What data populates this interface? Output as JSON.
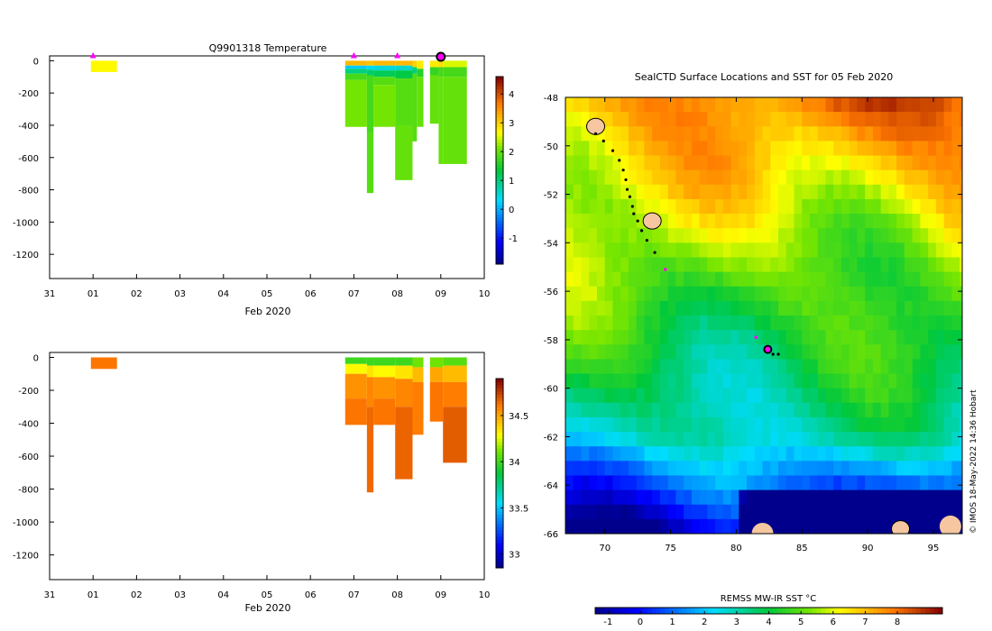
{
  "chart_data": [
    {
      "id": "temperature",
      "type": "heatmap",
      "title": "Q9901318  Temperature",
      "xlabel": "Feb 2020",
      "ylabel": "",
      "x_tick_labels": [
        "31",
        "01",
        "02",
        "03",
        "04",
        "05",
        "06",
        "07",
        "08",
        "09",
        "10"
      ],
      "y_ticks": [
        0,
        -200,
        -400,
        -600,
        -800,
        -1000,
        -1200
      ],
      "ylim": [
        -1350,
        30
      ],
      "colorbar": {
        "min": -1.9,
        "max": 4.6,
        "ticks": [
          -1,
          0,
          1,
          2,
          3,
          4
        ]
      },
      "markers_day": [
        1.0,
        7.0,
        8.0
      ],
      "current_day": 9.0,
      "profiles": [
        {
          "x0": 0.95,
          "x1": 1.55,
          "bottom": -70,
          "layers": [
            [
              0,
              2.7
            ]
          ]
        },
        {
          "x0": 6.8,
          "x1": 7.3,
          "bottom": -410,
          "layers": [
            [
              0,
              3.2
            ],
            [
              -30,
              0.2
            ],
            [
              -50,
              1.0
            ],
            [
              -80,
              1.8
            ],
            [
              -120,
              2.1
            ]
          ]
        },
        {
          "x0": 7.3,
          "x1": 7.45,
          "bottom": -820,
          "layers": [
            [
              0,
              3.1
            ],
            [
              -30,
              0.3
            ],
            [
              -55,
              1.1
            ],
            [
              -90,
              1.8
            ],
            [
              -450,
              1.9
            ]
          ]
        },
        {
          "x0": 7.45,
          "x1": 7.95,
          "bottom": -410,
          "layers": [
            [
              0,
              3.2
            ],
            [
              -30,
              0.5
            ],
            [
              -60,
              1.2
            ],
            [
              -100,
              1.9
            ],
            [
              -150,
              2.1
            ]
          ]
        },
        {
          "x0": 7.95,
          "x1": 8.35,
          "bottom": -740,
          "layers": [
            [
              0,
              3.2
            ],
            [
              -30,
              0.6
            ],
            [
              -60,
              1.3
            ],
            [
              -110,
              1.9
            ],
            [
              -400,
              2.0
            ]
          ]
        },
        {
          "x0": 8.35,
          "x1": 8.45,
          "bottom": -500,
          "layers": [
            [
              0,
              3.0
            ],
            [
              -40,
              1.0
            ],
            [
              -80,
              1.9
            ]
          ]
        },
        {
          "x0": 8.45,
          "x1": 8.6,
          "bottom": -410,
          "layers": [
            [
              0,
              2.8
            ],
            [
              -50,
              1.6
            ],
            [
              -100,
              2.0
            ]
          ]
        },
        {
          "x0": 8.75,
          "x1": 8.95,
          "bottom": -390,
          "layers": [
            [
              0,
              2.8
            ],
            [
              -40,
              1.7
            ],
            [
              -90,
              2.0
            ]
          ]
        },
        {
          "x0": 8.95,
          "x1": 9.05,
          "bottom": -640,
          "layers": [
            [
              0,
              2.9
            ],
            [
              -40,
              1.8
            ],
            [
              -100,
              2.0
            ]
          ]
        },
        {
          "x0": 9.05,
          "x1": 9.6,
          "bottom": -640,
          "layers": [
            [
              0,
              2.5
            ],
            [
              -40,
              1.8
            ],
            [
              -100,
              2.0
            ]
          ]
        }
      ]
    },
    {
      "id": "salinity",
      "type": "heatmap",
      "title": "",
      "xlabel": "Feb 2020",
      "ylabel": "",
      "x_tick_labels": [
        "31",
        "01",
        "02",
        "03",
        "04",
        "05",
        "06",
        "07",
        "08",
        "09",
        "10"
      ],
      "y_ticks": [
        0,
        -200,
        -400,
        -600,
        -800,
        -1000,
        -1200
      ],
      "ylim": [
        -1350,
        30
      ],
      "colorbar": {
        "min": 32.85,
        "max": 34.9,
        "ticks": [
          33,
          33.5,
          34,
          34.5
        ]
      },
      "profiles": [
        {
          "x0": 0.95,
          "x1": 1.55,
          "bottom": -70,
          "layers": [
            [
              0,
              34.62
            ]
          ]
        },
        {
          "x0": 6.8,
          "x1": 7.3,
          "bottom": -410,
          "layers": [
            [
              0,
              34.0
            ],
            [
              -40,
              34.3
            ],
            [
              -100,
              34.55
            ],
            [
              -250,
              34.62
            ]
          ]
        },
        {
          "x0": 7.3,
          "x1": 7.45,
          "bottom": -820,
          "layers": [
            [
              0,
              34.0
            ],
            [
              -50,
              34.35
            ],
            [
              -120,
              34.58
            ],
            [
              -300,
              34.65
            ]
          ]
        },
        {
          "x0": 7.45,
          "x1": 7.95,
          "bottom": -410,
          "layers": [
            [
              0,
              34.0
            ],
            [
              -50,
              34.3
            ],
            [
              -120,
              34.55
            ],
            [
              -250,
              34.62
            ]
          ]
        },
        {
          "x0": 7.95,
          "x1": 8.35,
          "bottom": -740,
          "layers": [
            [
              0,
              34.0
            ],
            [
              -50,
              34.35
            ],
            [
              -130,
              34.58
            ],
            [
              -300,
              34.66
            ]
          ]
        },
        {
          "x0": 8.35,
          "x1": 8.6,
          "bottom": -470,
          "layers": [
            [
              0,
              34.1
            ],
            [
              -60,
              34.45
            ],
            [
              -150,
              34.6
            ]
          ]
        },
        {
          "x0": 8.75,
          "x1": 9.05,
          "bottom": -390,
          "layers": [
            [
              0,
              34.1
            ],
            [
              -60,
              34.5
            ],
            [
              -150,
              34.62
            ]
          ]
        },
        {
          "x0": 9.05,
          "x1": 9.6,
          "bottom": -640,
          "layers": [
            [
              0,
              34.05
            ],
            [
              -50,
              34.45
            ],
            [
              -150,
              34.6
            ],
            [
              -300,
              34.68
            ]
          ]
        }
      ]
    },
    {
      "id": "sst-map",
      "type": "heatmap",
      "title": "SealCTD Surface Locations and SST for 05 Feb 2020",
      "x_ticks": [
        70,
        75,
        80,
        85,
        90,
        95
      ],
      "y_ticks": [
        -48,
        -50,
        -52,
        -54,
        -56,
        -58,
        -60,
        -62,
        -64,
        -66
      ],
      "xlim": [
        67,
        97.2
      ],
      "ylim": [
        -66,
        -48
      ],
      "colorbar": {
        "label": "REMSS MW-IR SST °C",
        "min": -1.4,
        "max": 9.4,
        "ticks": [
          -1,
          0,
          1,
          2,
          3,
          4,
          5,
          6,
          7,
          8
        ]
      },
      "track": [
        [
          69.3,
          -49.5
        ],
        [
          69.9,
          -49.8
        ],
        [
          70.6,
          -50.2
        ],
        [
          71.1,
          -50.6
        ],
        [
          71.4,
          -51.0
        ],
        [
          71.6,
          -51.4
        ],
        [
          71.7,
          -51.8
        ],
        [
          71.9,
          -52.1
        ],
        [
          72.1,
          -52.5
        ],
        [
          72.2,
          -52.8
        ],
        [
          72.5,
          -53.1
        ],
        [
          72.8,
          -53.5
        ],
        [
          73.2,
          -53.9
        ],
        [
          73.8,
          -54.4
        ],
        [
          82.2,
          -58.4
        ],
        [
          82.8,
          -58.6
        ],
        [
          83.2,
          -58.6
        ]
      ],
      "magenta_points": [
        [
          74.6,
          -55.1
        ],
        [
          81.5,
          -57.9
        ]
      ],
      "current_position": [
        82.4,
        -58.4
      ],
      "islands": [
        [
          69.3,
          -49.2
        ],
        [
          73.6,
          -53.1
        ],
        [
          92.5,
          -65.8
        ]
      ],
      "land_patches": [
        [
          82.0,
          -66.0
        ],
        [
          96.3,
          -65.7
        ]
      ]
    }
  ],
  "credit": "© IMOS 18-May-2022 14:36 Hobart"
}
